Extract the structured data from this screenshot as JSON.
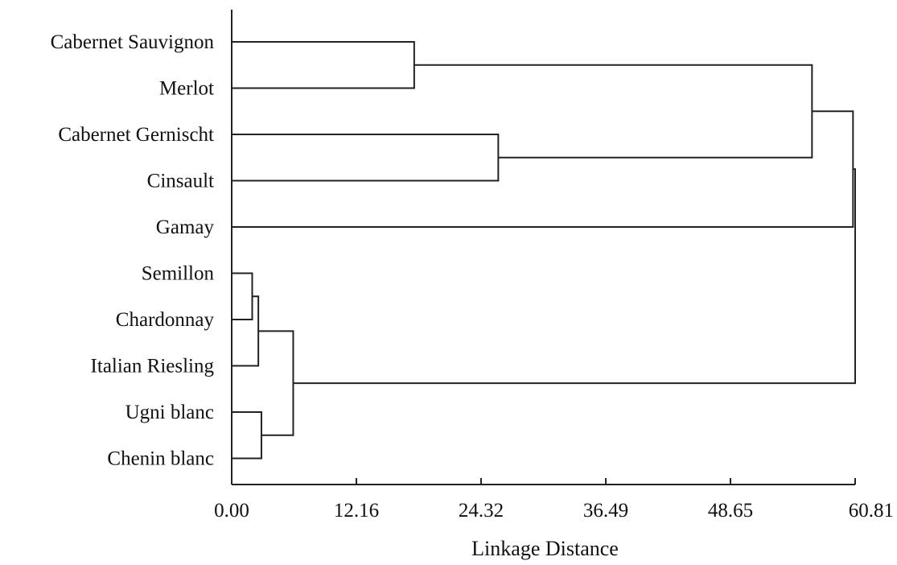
{
  "chart_data": {
    "type": "dendrogram",
    "orientation": "horizontal",
    "xlabel": "Linkage Distance",
    "xlim": [
      0,
      60.81
    ],
    "x_ticks": [
      "0.00",
      "12.16",
      "24.32",
      "36.49",
      "48.65",
      "60.81"
    ],
    "x_tick_values": [
      0,
      12.16,
      24.32,
      36.49,
      48.65,
      60.81
    ],
    "leaves": [
      "Cabernet Sauvignon",
      "Merlot",
      "Cabernet Gernischt",
      "Cinsault",
      "Gamay",
      "Semillon",
      "Chardonnay",
      "Italian Riesling",
      "Ugni blanc",
      "Chenin blanc"
    ],
    "merges": [
      {
        "id": "n1",
        "a": "Cabernet Sauvignon",
        "b": "Merlot",
        "height": 17.8
      },
      {
        "id": "n2",
        "a": "Cabernet Gernischt",
        "b": "Cinsault",
        "height": 26.0
      },
      {
        "id": "n3",
        "a": "n1",
        "b": "n2",
        "height": 56.6
      },
      {
        "id": "n4",
        "a": "Semillon",
        "b": "Chardonnay",
        "height": 2.0
      },
      {
        "id": "n5",
        "a": "n4",
        "b": "Italian Riesling",
        "height": 2.6
      },
      {
        "id": "n6",
        "a": "Ugni blanc",
        "b": "Chenin blanc",
        "height": 2.9
      },
      {
        "id": "n7",
        "a": "n5",
        "b": "n6",
        "height": 6.0
      },
      {
        "id": "n8",
        "a": "n3",
        "b": "Gamay",
        "height": 60.6
      },
      {
        "id": "n9",
        "a": "n8",
        "b": "n7",
        "height": 60.81
      }
    ]
  }
}
